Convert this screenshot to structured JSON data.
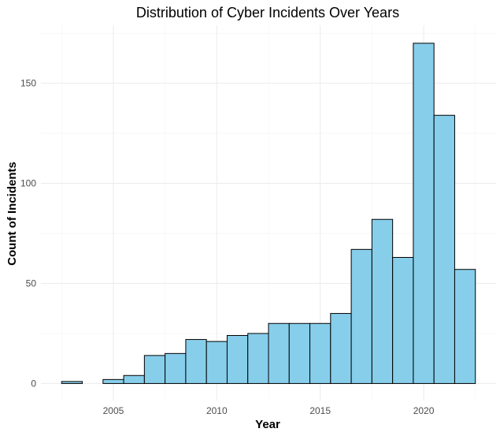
{
  "chart_data": {
    "type": "bar",
    "title": "Distribution of Cyber Incidents Over Years",
    "xlabel": "Year",
    "ylabel": "Count of Incidents",
    "x_ticks": [
      2005,
      2010,
      2015,
      2020
    ],
    "y_ticks": [
      0,
      50,
      100,
      150
    ],
    "xlim": [
      2001.5,
      2023.5
    ],
    "ylim": [
      -8.5,
      179
    ],
    "bin_width": 1,
    "bins": [
      {
        "start": 2002.5,
        "count": 1
      },
      {
        "start": 2003.5,
        "count": 0
      },
      {
        "start": 2004.5,
        "count": 2
      },
      {
        "start": 2005.5,
        "count": 4
      },
      {
        "start": 2006.5,
        "count": 14
      },
      {
        "start": 2007.5,
        "count": 15
      },
      {
        "start": 2008.5,
        "count": 22
      },
      {
        "start": 2009.5,
        "count": 21
      },
      {
        "start": 2010.5,
        "count": 24
      },
      {
        "start": 2011.5,
        "count": 25
      },
      {
        "start": 2012.5,
        "count": 30
      },
      {
        "start": 2013.5,
        "count": 30
      },
      {
        "start": 2014.5,
        "count": 30
      },
      {
        "start": 2015.5,
        "count": 35
      },
      {
        "start": 2016.5,
        "count": 67
      },
      {
        "start": 2017.5,
        "count": 82
      },
      {
        "start": 2018.5,
        "count": 63
      },
      {
        "start": 2019.5,
        "count": 170
      },
      {
        "start": 2020.5,
        "count": 134
      },
      {
        "start": 2021.5,
        "count": 57
      }
    ],
    "fill_color": "#87CEEB",
    "outline_color": "#000000",
    "grid": true,
    "legend": "none"
  }
}
